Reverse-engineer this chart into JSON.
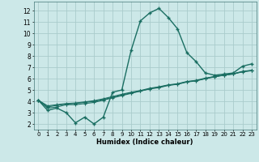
{
  "xlabel": "Humidex (Indice chaleur)",
  "bg_color": "#cce8e8",
  "grid_color": "#aacccc",
  "line_color": "#1a6e62",
  "xlim": [
    -0.5,
    23.5
  ],
  "ylim": [
    1.5,
    12.8
  ],
  "xticks": [
    0,
    1,
    2,
    3,
    4,
    5,
    6,
    7,
    8,
    9,
    10,
    11,
    12,
    13,
    14,
    15,
    16,
    17,
    18,
    19,
    20,
    21,
    22,
    23
  ],
  "yticks": [
    2,
    3,
    4,
    5,
    6,
    7,
    8,
    9,
    10,
    11,
    12
  ],
  "series": [
    [
      4.1,
      3.2,
      3.4,
      3.0,
      2.1,
      2.6,
      2.0,
      2.6,
      4.8,
      5.0,
      8.5,
      11.1,
      11.8,
      12.2,
      11.4,
      10.4,
      8.3,
      7.5,
      6.5,
      6.3,
      6.4,
      6.5,
      7.1,
      7.3
    ],
    [
      4.1,
      3.4,
      3.5,
      3.7,
      3.7,
      3.8,
      3.9,
      4.1,
      4.3,
      4.5,
      4.7,
      4.9,
      5.1,
      5.2,
      5.4,
      5.5,
      5.7,
      5.8,
      6.0,
      6.2,
      6.3,
      6.4,
      6.6,
      6.7
    ],
    [
      4.1,
      3.5,
      3.65,
      3.75,
      3.82,
      3.9,
      4.0,
      4.15,
      4.35,
      4.55,
      4.75,
      4.9,
      5.1,
      5.25,
      5.42,
      5.52,
      5.72,
      5.82,
      6.0,
      6.15,
      6.3,
      6.42,
      6.62,
      6.72
    ],
    [
      4.1,
      3.6,
      3.7,
      3.8,
      3.85,
      3.95,
      4.05,
      4.22,
      4.42,
      4.62,
      4.8,
      4.95,
      5.15,
      5.28,
      5.45,
      5.55,
      5.75,
      5.85,
      6.05,
      6.18,
      6.32,
      6.44,
      6.64,
      6.74
    ]
  ]
}
